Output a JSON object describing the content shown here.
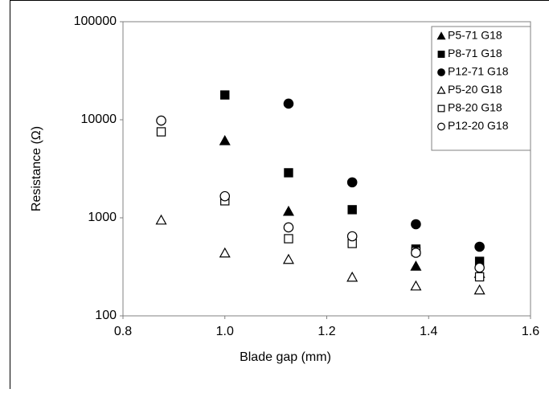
{
  "chart_data": {
    "type": "scatter",
    "x_label": "Blade gap (mm)",
    "y_label": "Resistance (Ω)",
    "x": [
      0.875,
      1.0,
      1.125,
      1.25,
      1.375,
      1.5
    ],
    "xlim": [
      0.8,
      1.6
    ],
    "xticks": [
      0.8,
      {
        "value": 1,
        "label": "1.0"
      },
      1.2,
      1.4,
      1.6
    ],
    "ylim": [
      100,
      100000
    ],
    "yticks": [
      100,
      1000,
      10000,
      100000
    ],
    "log_y": true,
    "grid": false,
    "legend": "top-right",
    "series": [
      {
        "name": "P5-71 G18",
        "color": "#000000",
        "marker": "triangle",
        "filled": true,
        "values": [
          null,
          6100,
          1160,
          null,
          320,
          270
        ]
      },
      {
        "name": "P8-71 G18",
        "color": "#000000",
        "marker": "square",
        "filled": true,
        "values": [
          null,
          17900,
          2880,
          1210,
          480,
          360
        ]
      },
      {
        "name": "P12-71 G18",
        "color": "#000000",
        "marker": "circle",
        "filled": true,
        "values": [
          null,
          null,
          14600,
          2300,
          860,
          507
        ]
      },
      {
        "name": "P5-20 G18",
        "color": "#000000",
        "marker": "triangle",
        "filled": false,
        "values": [
          945,
          436,
          375,
          247,
          201,
          183
        ]
      },
      {
        "name": "P8-20 G18",
        "color": "#000000",
        "marker": "square",
        "filled": false,
        "values": [
          7530,
          1490,
          612,
          547,
          453,
          250
        ]
      },
      {
        "name": "P12-20 G18",
        "color": "#000000",
        "marker": "circle",
        "filled": false,
        "values": [
          9800,
          1660,
          798,
          648,
          440,
          310
        ]
      }
    ]
  }
}
